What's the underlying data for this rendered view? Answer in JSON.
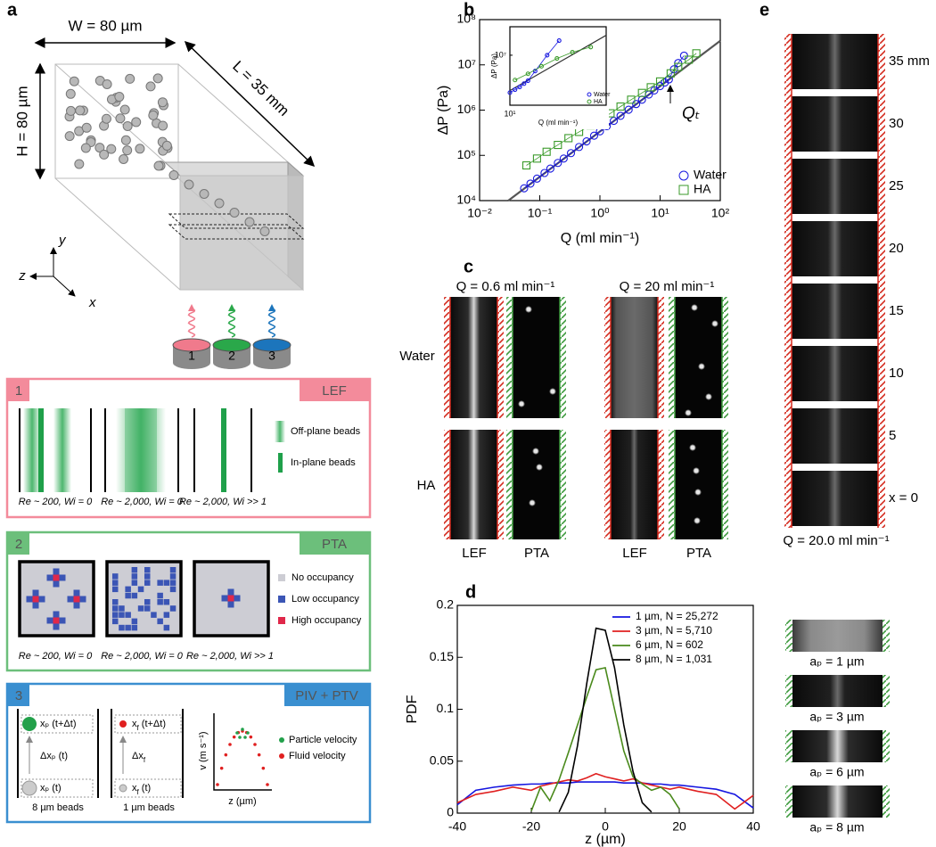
{
  "panels": {
    "a": {
      "label": "a",
      "width_label": "W = 80 µm",
      "height_label": "H = 80 µm",
      "length_label": "L = 35 mm",
      "axes": [
        "y",
        "z",
        "x"
      ],
      "detectors": [
        "1",
        "2",
        "3"
      ],
      "boxes": [
        {
          "number": "1",
          "title": "LEF",
          "legend": [
            "Off-plane beads",
            "In-plane beads"
          ],
          "captions": [
            "Re ~ 200, Wi = 0",
            "Re ~ 2,000, Wi = 0",
            "Re ~ 2,000, Wi >> 1"
          ]
        },
        {
          "number": "2",
          "title": "PTA",
          "legend": [
            "No occupancy",
            "Low occupancy",
            "High occupancy"
          ],
          "captions": [
            "Re ~ 200, Wi = 0",
            "Re ~ 2,000, Wi = 0",
            "Re ~ 2,000, Wi >> 1"
          ]
        },
        {
          "number": "3",
          "title": "PIV + PTV",
          "particle": {
            "top": "xₚ (t+Δt)",
            "delta": "Δxₚ (t)",
            "bottom": "xₚ (t)",
            "caption": "8 µm beads"
          },
          "fluid": {
            "top": {
              "base": "x",
              "sub": "f",
              "tail": " (t+Δt)"
            },
            "delta": {
              "base": "Δx",
              "sub": "f"
            },
            "bottom": {
              "base": "x",
              "sub": "f",
              "tail": " (t)"
            },
            "caption": "1 µm beads"
          },
          "plot": {
            "ylabel": "v (m s⁻¹)",
            "xlabel": "z (µm)"
          },
          "legend": [
            "Particle velocity",
            "Fluid velocity"
          ]
        }
      ]
    },
    "c": {
      "label": "c",
      "headers": [
        "Q = 0.6 ml min⁻¹",
        "Q = 20 ml min⁻¹"
      ],
      "rows": [
        "Water",
        "HA"
      ],
      "columns": [
        "LEF",
        "PTA",
        "LEF",
        "PTA"
      ]
    },
    "d_images": [
      "aₚ = 1 µm",
      "aₚ = 3 µm",
      "aₚ = 6 µm",
      "aₚ = 8 µm"
    ],
    "e": {
      "label": "e",
      "positions": [
        "35 mm",
        "30",
        "25",
        "20",
        "15",
        "10",
        "5",
        "x = 0"
      ],
      "caption": "Q = 20.0 ml min⁻¹"
    }
  },
  "chart_data": [
    {
      "type": "scatter",
      "panel_label": "b",
      "xlabel": "Q (ml min⁻¹)",
      "ylabel": "ΔP (Pa)",
      "annotation": "Qₜ",
      "log_x": true,
      "log_y": true,
      "xlim": [
        0.01,
        100
      ],
      "ylim": [
        10000,
        100000000
      ],
      "xticks": [
        {
          "value": 0.01,
          "label": "10⁻²"
        },
        {
          "value": 0.1,
          "label": "10⁻¹"
        },
        {
          "value": 1,
          "label": "10⁰"
        },
        {
          "value": 10,
          "label": "10¹"
        },
        {
          "value": 100,
          "label": "10²"
        }
      ],
      "yticks": [
        {
          "value": 10000,
          "label": "10⁴"
        },
        {
          "value": 100000,
          "label": "10⁵"
        },
        {
          "value": 1000000,
          "label": "10⁶"
        },
        {
          "value": 10000000,
          "label": "10⁷"
        },
        {
          "value": 100000000,
          "label": "10⁸"
        }
      ],
      "legend": "lower right",
      "series": [
        {
          "name": "Water",
          "color": "#1818e0",
          "marker": "circle",
          "x": [
            0.055,
            0.07,
            0.09,
            0.12,
            0.15,
            0.2,
            0.25,
            0.33,
            0.45,
            0.6,
            0.8,
            1,
            1.3,
            1.7,
            2.2,
            3,
            4,
            5,
            6.5,
            8,
            10,
            12,
            14,
            17,
            20,
            25
          ],
          "values": [
            18700,
            23800,
            30600,
            40800,
            51000,
            68000,
            85000,
            112000,
            153000,
            204000,
            272000,
            340000,
            442000,
            578000,
            748000,
            1020000,
            1360000,
            1700000,
            2210000,
            2720000,
            3400000,
            4080000,
            4760000,
            8000000,
            11000000,
            16000000
          ]
        },
        {
          "name": "HA",
          "color": "#3a9a2a",
          "marker": "square",
          "x": [
            0.06,
            0.09,
            0.13,
            0.2,
            0.3,
            0.45,
            0.7,
            1,
            1.5,
            2.2,
            3.3,
            5,
            7,
            10,
            15,
            20,
            30,
            40
          ],
          "values": [
            60000,
            85000,
            120000,
            170000,
            240000,
            330000,
            460000,
            600000,
            850000,
            1200000,
            1700000,
            2400000,
            3200000,
            4300000,
            6500000,
            9000000,
            13000000,
            18000000
          ]
        }
      ],
      "fit_line": {
        "color": "#555555",
        "x": [
          0.03,
          100
        ],
        "values": [
          10000,
          34000000
        ]
      }
    },
    {
      "type": "scatter",
      "xlabel": "Q (ml min⁻¹)",
      "ylabel": "ΔP (Pa)",
      "log_x": true,
      "log_y": true,
      "xlim": [
        10,
        60
      ],
      "ylim": [
        2000000,
        25000000
      ],
      "xticks": [
        {
          "value": 10,
          "label": "10¹"
        }
      ],
      "yticks": [
        {
          "value": 10000000,
          "label": "10⁷"
        }
      ],
      "legend": "lower right",
      "series": [
        {
          "name": "Water",
          "color": "#1818e0",
          "marker": "circle",
          "x": [
            10,
            11,
            12,
            13,
            14,
            16,
            20,
            25
          ],
          "values": [
            3000000,
            3300000,
            3600000,
            4000000,
            4400000,
            6000000,
            10000000,
            16000000
          ]
        },
        {
          "name": "HA",
          "color": "#3a9a2a",
          "marker": "circle",
          "x": [
            11,
            14,
            18,
            24,
            32,
            45
          ],
          "values": [
            4500000,
            5500000,
            7000000,
            9000000,
            11000000,
            13000000
          ]
        }
      ],
      "fit_line": {
        "color": "#333333",
        "x": [
          10,
          60
        ],
        "values": [
          3200000,
          19000000
        ]
      }
    },
    {
      "type": "line",
      "panel_label": "d",
      "xlabel": "z (µm)",
      "ylabel": "PDF",
      "xlim": [
        -40,
        40
      ],
      "ylim": [
        0,
        0.2
      ],
      "xticks": [
        -40,
        -20,
        0,
        20,
        40
      ],
      "yticks": [
        0,
        0.05,
        0.1,
        0.15,
        0.2
      ],
      "legend": "upper right",
      "x": [
        -40,
        -35,
        -30,
        -25,
        -20,
        -17.5,
        -15,
        -12.5,
        -10,
        -7.5,
        -5,
        -2.5,
        0,
        2.5,
        5,
        7.5,
        10,
        12.5,
        15,
        17.5,
        20,
        25,
        30,
        35,
        40
      ],
      "series": [
        {
          "name": "1 µm, N = 25,272",
          "color": "#1515e0",
          "values": [
            0.008,
            0.022,
            0.025,
            0.027,
            0.028,
            0.028,
            0.029,
            0.029,
            0.029,
            0.03,
            0.03,
            0.03,
            0.03,
            0.03,
            0.029,
            0.029,
            0.029,
            0.028,
            0.028,
            0.027,
            0.027,
            0.025,
            0.023,
            0.018,
            0.005
          ]
        },
        {
          "name": "3 µm, N = 5,710",
          "color": "#e02020",
          "values": [
            0.01,
            0.018,
            0.021,
            0.025,
            0.022,
            0.026,
            0.028,
            0.03,
            0.032,
            0.031,
            0.034,
            0.038,
            0.035,
            0.033,
            0.031,
            0.033,
            0.029,
            0.027,
            0.025,
            0.023,
            0.025,
            0.021,
            0.018,
            0.004,
            0.017
          ]
        },
        {
          "name": "6 µm, N = 602",
          "color": "#4a8a1c",
          "values": [
            null,
            null,
            null,
            null,
            0.002,
            0.025,
            0.012,
            0.032,
            0.058,
            0.085,
            0.112,
            0.138,
            0.14,
            0.1,
            0.06,
            0.035,
            0.028,
            0.022,
            0.025,
            0.018,
            0.004,
            null,
            null,
            null,
            null
          ]
        },
        {
          "name": "8 µm, N = 1,031",
          "color": "#000000",
          "values": [
            null,
            null,
            null,
            null,
            null,
            null,
            null,
            0.001,
            0.02,
            0.065,
            0.125,
            0.178,
            0.176,
            0.14,
            0.085,
            0.04,
            0.01,
            0.001,
            null,
            null,
            null,
            null,
            null,
            null,
            null
          ]
        }
      ]
    }
  ]
}
